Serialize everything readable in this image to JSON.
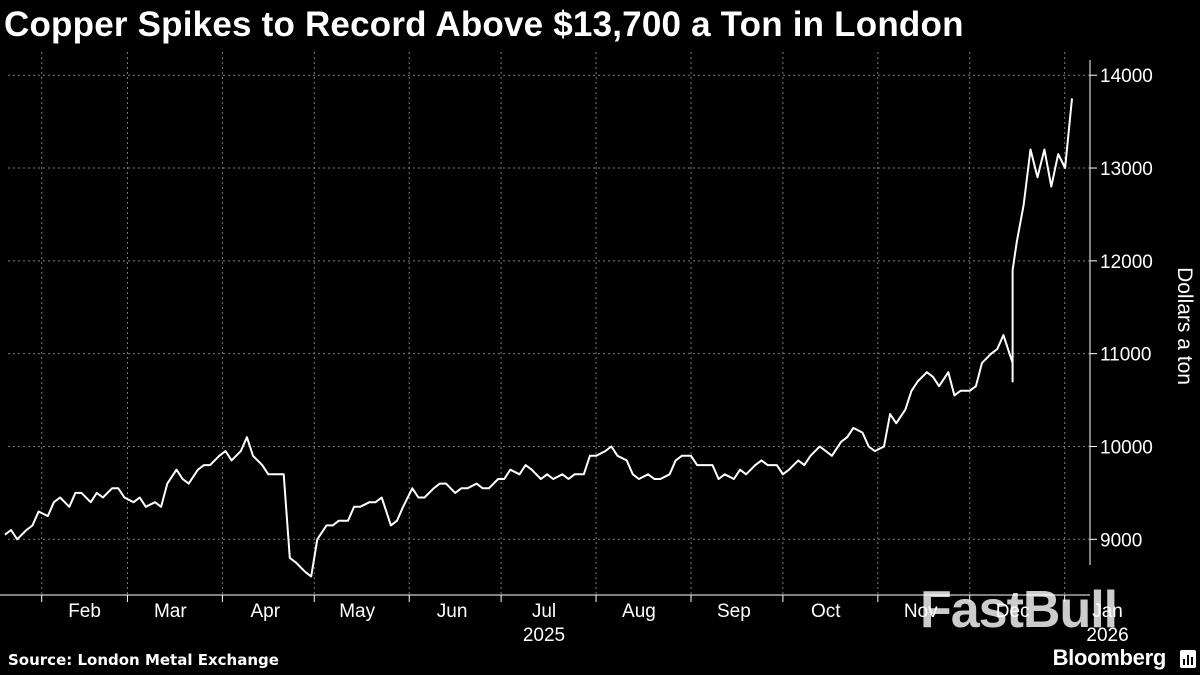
{
  "title": "Copper Spikes to Record Above $13,700 a Ton in London",
  "source": "Source: London Metal Exchange",
  "brand": "Bloomberg",
  "watermark": "FastBull",
  "colors": {
    "background": "#000000",
    "line": "#ffffff",
    "grid": "#7a7a7a",
    "text": "#ffffff"
  },
  "chart_data": {
    "type": "line",
    "title": "Copper Spikes to Record Above $13,700 a Ton in London",
    "ylabel": "Dollars a ton",
    "xlabel": "",
    "ylim": [
      8400,
      14250
    ],
    "xlim": [
      "2025-01-21",
      "2026-01-06"
    ],
    "y_ticks": [
      9000,
      10000,
      11000,
      12000,
      13000,
      14000
    ],
    "y_tick_labels": [
      "9000",
      "10000",
      "11000",
      "12000",
      "13000",
      "14000"
    ],
    "x_ticks": [
      {
        "label": "Feb",
        "date": "2025-02-15"
      },
      {
        "label": "Mar",
        "date": "2025-03-15"
      },
      {
        "label": "Apr",
        "date": "2025-04-15"
      },
      {
        "label": "May",
        "date": "2025-05-15"
      },
      {
        "label": "Jun",
        "date": "2025-06-15"
      },
      {
        "label": "Jul",
        "date": "2025-07-15"
      },
      {
        "label": "Aug",
        "date": "2025-08-15"
      },
      {
        "label": "Sep",
        "date": "2025-09-15"
      },
      {
        "label": "Oct",
        "date": "2025-10-15"
      },
      {
        "label": "Nov",
        "date": "2025-11-15"
      },
      {
        "label": "Dec",
        "date": "2025-12-15"
      },
      {
        "label": "Jan",
        "date": "2026-01-15"
      }
    ],
    "month_boundaries": [
      "2025-02-01",
      "2025-03-01",
      "2025-04-01",
      "2025-05-01",
      "2025-06-01",
      "2025-07-01",
      "2025-08-01",
      "2025-09-01",
      "2025-10-01",
      "2025-11-01",
      "2025-12-01",
      "2026-01-01"
    ],
    "year_labels": [
      {
        "label": "2025",
        "date": "2025-07-15"
      },
      {
        "label": "2026",
        "date": "2026-01-15"
      }
    ],
    "grid": true,
    "legend": "none",
    "series": [
      {
        "values": [
          {
            "x": "2025-01-20",
            "y": 9050
          },
          {
            "x": "2025-01-22",
            "y": 9100
          },
          {
            "x": "2025-01-24",
            "y": 9000
          },
          {
            "x": "2025-01-27",
            "y": 9100
          },
          {
            "x": "2025-01-29",
            "y": 9150
          },
          {
            "x": "2025-01-31",
            "y": 9300
          },
          {
            "x": "2025-02-03",
            "y": 9250
          },
          {
            "x": "2025-02-05",
            "y": 9400
          },
          {
            "x": "2025-02-07",
            "y": 9450
          },
          {
            "x": "2025-02-10",
            "y": 9350
          },
          {
            "x": "2025-02-12",
            "y": 9500
          },
          {
            "x": "2025-02-14",
            "y": 9500
          },
          {
            "x": "2025-02-17",
            "y": 9400
          },
          {
            "x": "2025-02-19",
            "y": 9500
          },
          {
            "x": "2025-02-21",
            "y": 9450
          },
          {
            "x": "2025-02-24",
            "y": 9550
          },
          {
            "x": "2025-02-26",
            "y": 9550
          },
          {
            "x": "2025-02-28",
            "y": 9450
          },
          {
            "x": "2025-03-03",
            "y": 9400
          },
          {
            "x": "2025-03-05",
            "y": 9450
          },
          {
            "x": "2025-03-07",
            "y": 9350
          },
          {
            "x": "2025-03-10",
            "y": 9400
          },
          {
            "x": "2025-03-12",
            "y": 9350
          },
          {
            "x": "2025-03-14",
            "y": 9600
          },
          {
            "x": "2025-03-17",
            "y": 9750
          },
          {
            "x": "2025-03-19",
            "y": 9650
          },
          {
            "x": "2025-03-21",
            "y": 9600
          },
          {
            "x": "2025-03-24",
            "y": 9750
          },
          {
            "x": "2025-03-26",
            "y": 9800
          },
          {
            "x": "2025-03-28",
            "y": 9800
          },
          {
            "x": "2025-03-31",
            "y": 9900
          },
          {
            "x": "2025-04-02",
            "y": 9950
          },
          {
            "x": "2025-04-04",
            "y": 9850
          },
          {
            "x": "2025-04-07",
            "y": 9950
          },
          {
            "x": "2025-04-09",
            "y": 10100
          },
          {
            "x": "2025-04-11",
            "y": 9900
          },
          {
            "x": "2025-04-14",
            "y": 9800
          },
          {
            "x": "2025-04-16",
            "y": 9700
          },
          {
            "x": "2025-04-18",
            "y": 9700
          },
          {
            "x": "2025-04-21",
            "y": 9700
          },
          {
            "x": "2025-04-23",
            "y": 8800
          },
          {
            "x": "2025-04-25",
            "y": 8750
          },
          {
            "x": "2025-04-28",
            "y": 8650
          },
          {
            "x": "2025-04-30",
            "y": 8600
          },
          {
            "x": "2025-05-02",
            "y": 9000
          },
          {
            "x": "2025-05-05",
            "y": 9150
          },
          {
            "x": "2025-05-07",
            "y": 9150
          },
          {
            "x": "2025-05-09",
            "y": 9200
          },
          {
            "x": "2025-05-12",
            "y": 9200
          },
          {
            "x": "2025-05-14",
            "y": 9350
          },
          {
            "x": "2025-05-16",
            "y": 9350
          },
          {
            "x": "2025-05-19",
            "y": 9400
          },
          {
            "x": "2025-05-21",
            "y": 9400
          },
          {
            "x": "2025-05-23",
            "y": 9450
          },
          {
            "x": "2025-05-26",
            "y": 9150
          },
          {
            "x": "2025-05-28",
            "y": 9200
          },
          {
            "x": "2025-05-30",
            "y": 9350
          },
          {
            "x": "2025-06-02",
            "y": 9550
          },
          {
            "x": "2025-06-04",
            "y": 9450
          },
          {
            "x": "2025-06-06",
            "y": 9450
          },
          {
            "x": "2025-06-09",
            "y": 9550
          },
          {
            "x": "2025-06-11",
            "y": 9600
          },
          {
            "x": "2025-06-13",
            "y": 9600
          },
          {
            "x": "2025-06-16",
            "y": 9500
          },
          {
            "x": "2025-06-18",
            "y": 9550
          },
          {
            "x": "2025-06-20",
            "y": 9550
          },
          {
            "x": "2025-06-23",
            "y": 9600
          },
          {
            "x": "2025-06-25",
            "y": 9550
          },
          {
            "x": "2025-06-27",
            "y": 9550
          },
          {
            "x": "2025-06-30",
            "y": 9650
          },
          {
            "x": "2025-07-02",
            "y": 9650
          },
          {
            "x": "2025-07-04",
            "y": 9750
          },
          {
            "x": "2025-07-07",
            "y": 9700
          },
          {
            "x": "2025-07-09",
            "y": 9800
          },
          {
            "x": "2025-07-11",
            "y": 9750
          },
          {
            "x": "2025-07-14",
            "y": 9650
          },
          {
            "x": "2025-07-16",
            "y": 9700
          },
          {
            "x": "2025-07-18",
            "y": 9650
          },
          {
            "x": "2025-07-21",
            "y": 9700
          },
          {
            "x": "2025-07-23",
            "y": 9650
          },
          {
            "x": "2025-07-25",
            "y": 9700
          },
          {
            "x": "2025-07-28",
            "y": 9700
          },
          {
            "x": "2025-07-30",
            "y": 9900
          },
          {
            "x": "2025-08-01",
            "y": 9900
          },
          {
            "x": "2025-08-04",
            "y": 9950
          },
          {
            "x": "2025-08-06",
            "y": 10000
          },
          {
            "x": "2025-08-08",
            "y": 9900
          },
          {
            "x": "2025-08-11",
            "y": 9850
          },
          {
            "x": "2025-08-13",
            "y": 9700
          },
          {
            "x": "2025-08-15",
            "y": 9650
          },
          {
            "x": "2025-08-18",
            "y": 9700
          },
          {
            "x": "2025-08-20",
            "y": 9650
          },
          {
            "x": "2025-08-22",
            "y": 9650
          },
          {
            "x": "2025-08-25",
            "y": 9700
          },
          {
            "x": "2025-08-27",
            "y": 9850
          },
          {
            "x": "2025-08-29",
            "y": 9900
          },
          {
            "x": "2025-09-01",
            "y": 9900
          },
          {
            "x": "2025-09-03",
            "y": 9800
          },
          {
            "x": "2025-09-05",
            "y": 9800
          },
          {
            "x": "2025-09-08",
            "y": 9800
          },
          {
            "x": "2025-09-10",
            "y": 9650
          },
          {
            "x": "2025-09-12",
            "y": 9700
          },
          {
            "x": "2025-09-15",
            "y": 9650
          },
          {
            "x": "2025-09-17",
            "y": 9750
          },
          {
            "x": "2025-09-19",
            "y": 9700
          },
          {
            "x": "2025-09-22",
            "y": 9800
          },
          {
            "x": "2025-09-24",
            "y": 9850
          },
          {
            "x": "2025-09-26",
            "y": 9800
          },
          {
            "x": "2025-09-29",
            "y": 9800
          },
          {
            "x": "2025-10-01",
            "y": 9700
          },
          {
            "x": "2025-10-03",
            "y": 9750
          },
          {
            "x": "2025-10-06",
            "y": 9850
          },
          {
            "x": "2025-10-08",
            "y": 9800
          },
          {
            "x": "2025-10-10",
            "y": 9900
          },
          {
            "x": "2025-10-13",
            "y": 10000
          },
          {
            "x": "2025-10-15",
            "y": 9950
          },
          {
            "x": "2025-10-17",
            "y": 9900
          },
          {
            "x": "2025-10-20",
            "y": 10050
          },
          {
            "x": "2025-10-22",
            "y": 10100
          },
          {
            "x": "2025-10-24",
            "y": 10200
          },
          {
            "x": "2025-10-27",
            "y": 10150
          },
          {
            "x": "2025-10-29",
            "y": 10000
          },
          {
            "x": "2025-10-31",
            "y": 9950
          },
          {
            "x": "2025-11-03",
            "y": 10000
          },
          {
            "x": "2025-11-05",
            "y": 10350
          },
          {
            "x": "2025-11-07",
            "y": 10250
          },
          {
            "x": "2025-11-10",
            "y": 10400
          },
          {
            "x": "2025-11-12",
            "y": 10600
          },
          {
            "x": "2025-11-14",
            "y": 10700
          },
          {
            "x": "2025-11-17",
            "y": 10800
          },
          {
            "x": "2025-11-19",
            "y": 10750
          },
          {
            "x": "2025-11-21",
            "y": 10650
          },
          {
            "x": "2025-11-24",
            "y": 10800
          },
          {
            "x": "2025-11-26",
            "y": 10550
          },
          {
            "x": "2025-11-28",
            "y": 10600
          },
          {
            "x": "2025-12-01",
            "y": 10600
          },
          {
            "x": "2025-12-03",
            "y": 10650
          },
          {
            "x": "2025-12-05",
            "y": 10900
          },
          {
            "x": "2025-12-08",
            "y": 11000
          },
          {
            "x": "2025-12-10",
            "y": 11050
          },
          {
            "x": "2025-12-12",
            "y": 11200
          },
          {
            "x": "2025-12-15",
            "y": 10900
          },
          {
            "x": "2025-12-17",
            "y": 10850
          },
          {
            "x": "2025-12-19",
            "y": 10700
          },
          {
            "x": "2025-12-22",
            "y": 10750
          },
          {
            "x": "2025-12-24",
            "y": 10850
          },
          {
            "x": "2025-12-26",
            "y": 10950
          },
          {
            "x": "2025-12-29",
            "y": 11000
          },
          {
            "x": "2025-12-31",
            "y": 11200
          },
          {
            "x": "2026-01-02",
            "y": 11250
          },
          {
            "x": "2026-01-05",
            "y": 11500
          },
          {
            "x": "2026-01-06",
            "y": 11600
          },
          {
            "x": "2026-01-06",
            "y": 11850
          },
          {
            "x": "2026-01-06",
            "y": 11700
          },
          {
            "x": "2026-01-06",
            "y": 11900
          },
          {
            "x": "2026-01-06",
            "y": 12200
          },
          {
            "x": "2026-01-06",
            "y": 12600
          },
          {
            "x": "2026-01-06",
            "y": 13200
          },
          {
            "x": "2026-01-06",
            "y": 12900
          },
          {
            "x": "2026-01-06",
            "y": 13200
          },
          {
            "x": "2026-01-06",
            "y": 12800
          },
          {
            "x": "2026-01-06",
            "y": 13150
          },
          {
            "x": "2026-01-06",
            "y": 13000
          },
          {
            "x": "2026-01-06",
            "y": 13750
          }
        ]
      }
    ]
  }
}
